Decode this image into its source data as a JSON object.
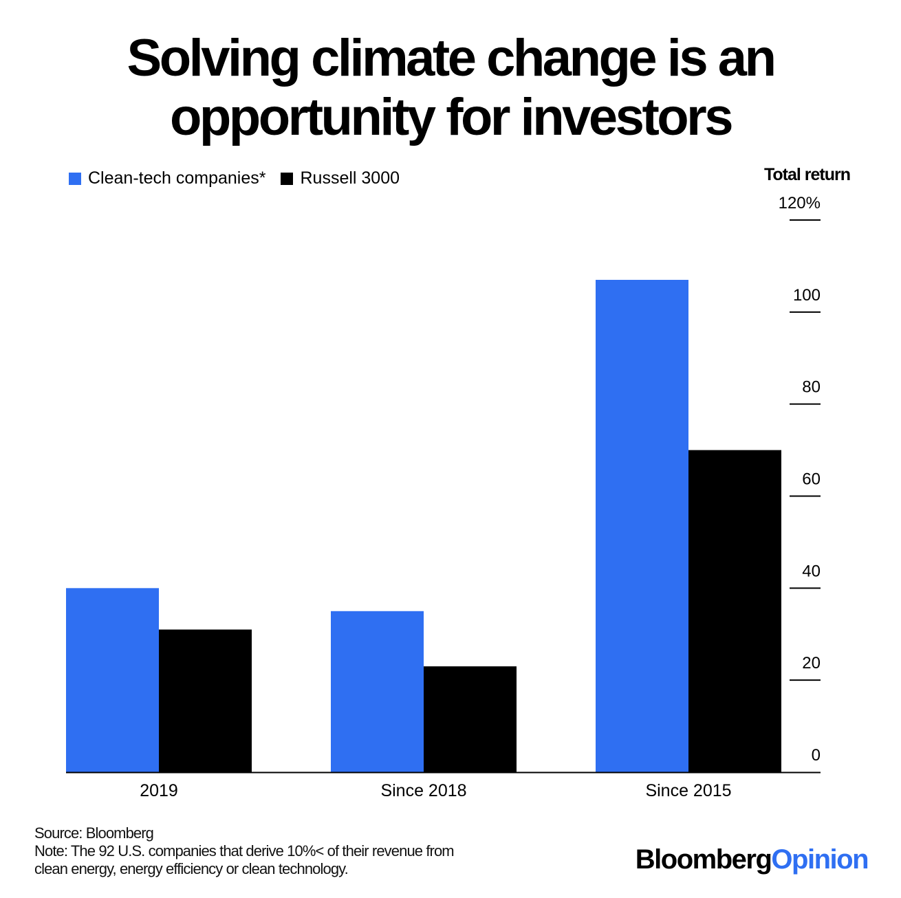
{
  "title_line1": "Solving climate change is an",
  "title_line2": "opportunity for investors",
  "legend": [
    {
      "label": "Clean-tech companies*",
      "color": "#2f6ff2"
    },
    {
      "label": "Russell 3000",
      "color": "#000000"
    }
  ],
  "axis_title": "Total return",
  "footer": {
    "source": "Source: Bloomberg",
    "note_line1": "Note: The 92 U.S. companies that derive 10%< of their revenue from",
    "note_line2": "clean energy, energy efficiency or clean technology."
  },
  "brand": {
    "part1": "Bloomberg",
    "part2": "Opinion"
  },
  "chart_data": {
    "type": "bar",
    "title": "Solving climate change is an opportunity for investors",
    "ylabel": "Total return",
    "categories": [
      "2019",
      "Since 2018",
      "Since 2015"
    ],
    "series": [
      {
        "name": "Clean-tech companies*",
        "color": "#2f6ff2",
        "values": [
          40,
          35,
          107
        ]
      },
      {
        "name": "Russell 3000",
        "color": "#000000",
        "values": [
          31,
          23,
          70
        ]
      }
    ],
    "ylim": [
      0,
      120
    ],
    "yticks": [
      0,
      20,
      40,
      60,
      80,
      100,
      120
    ],
    "ytick_labels": [
      "0",
      "20",
      "40",
      "60",
      "80",
      "100",
      "120%"
    ],
    "yaxis_side": "right",
    "grid": false,
    "legend_position": "top-left"
  }
}
